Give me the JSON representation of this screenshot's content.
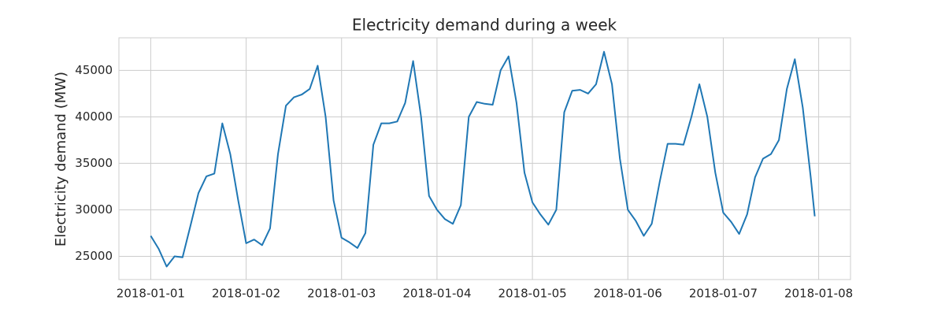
{
  "chart_data": {
    "type": "line",
    "title": "Electricity demand during a week",
    "y_label": "Electricity demand (MW)",
    "x": [
      0,
      2,
      4,
      6,
      8,
      10,
      12,
      14,
      16,
      18,
      20,
      22,
      24,
      26,
      28,
      30,
      32,
      34,
      36,
      38,
      40,
      42,
      44,
      46,
      48,
      50,
      52,
      54,
      56,
      58,
      60,
      62,
      64,
      66,
      68,
      70,
      72,
      74,
      76,
      78,
      80,
      82,
      84,
      86,
      88,
      90,
      92,
      94,
      96,
      98,
      100,
      102,
      104,
      106,
      108,
      110,
      112,
      114,
      116,
      118,
      120,
      122,
      124,
      126,
      128,
      130,
      132,
      134,
      136,
      138,
      140,
      142,
      144,
      146,
      148,
      150,
      152,
      154,
      156,
      158,
      160,
      162,
      164,
      166,
      167
    ],
    "series": [
      {
        "name": "Electricity demand",
        "color": "#1f77b4",
        "values": [
          27200,
          25800,
          23900,
          25000,
          24900,
          28300,
          31800,
          33600,
          33900,
          39300,
          36000,
          31000,
          26400,
          26800,
          26200,
          28000,
          36000,
          41200,
          42100,
          42400,
          43000,
          45500,
          40000,
          31000,
          27000,
          26500,
          25900,
          27500,
          37000,
          39300,
          39300,
          39500,
          41500,
          46000,
          40000,
          31500,
          30000,
          29000,
          28500,
          30500,
          40000,
          41600,
          41400,
          41300,
          45000,
          46500,
          41500,
          34000,
          30800,
          29500,
          28400,
          30000,
          40500,
          42800,
          42900,
          42500,
          43500,
          47000,
          43500,
          35500,
          30000,
          28800,
          27200,
          28500,
          33000,
          37100,
          37100,
          37000,
          40000,
          43500,
          40000,
          34000,
          29700,
          28700,
          27400,
          29500,
          33500,
          35500,
          36000,
          37500,
          43000,
          46200,
          41000,
          33500,
          29300
        ]
      }
    ],
    "xlim": [
      -8,
      176
    ],
    "ylim": [
      22500,
      48500
    ],
    "xticks": [
      {
        "value": 0,
        "label": "2018-01-01"
      },
      {
        "value": 24,
        "label": "2018-01-02"
      },
      {
        "value": 48,
        "label": "2018-01-03"
      },
      {
        "value": 72,
        "label": "2018-01-04"
      },
      {
        "value": 96,
        "label": "2018-01-05"
      },
      {
        "value": 120,
        "label": "2018-01-06"
      },
      {
        "value": 144,
        "label": "2018-01-07"
      },
      {
        "value": 168,
        "label": "2018-01-08"
      }
    ],
    "yticks": [
      25000,
      30000,
      35000,
      40000,
      45000
    ],
    "grid": true
  }
}
